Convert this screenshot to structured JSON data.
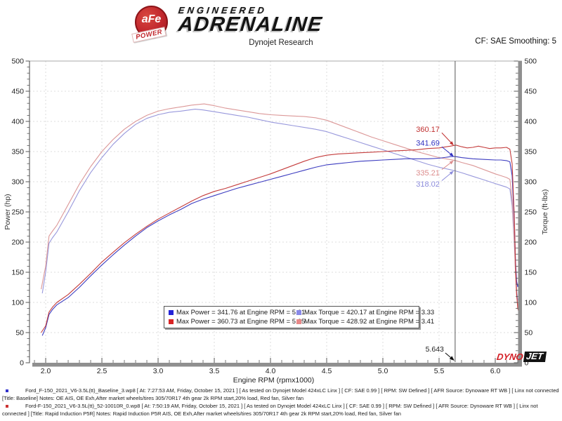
{
  "header": {
    "badge_text": "aFe",
    "badge_sub": "POWER",
    "brand_top": "ENGINEERED",
    "brand_main": "ADRENALINE",
    "subtitle": "Dynojet Research",
    "smoothing_label": "CF: SAE Smoothing: 5"
  },
  "chart_data": {
    "type": "line",
    "xlabel": "Engine RPM (rpmx1000)",
    "ylabel_left": "Power (hp)",
    "ylabel_right": "Torque (ft-lbs)",
    "xlim": [
      1.856,
      6.2
    ],
    "ylim": [
      0,
      500
    ],
    "x_ticks": [
      2.0,
      2.5,
      3.0,
      3.5,
      4.0,
      4.5,
      5.0,
      5.5,
      6.0
    ],
    "y_ticks": [
      0,
      50,
      100,
      150,
      200,
      250,
      300,
      350,
      400,
      450,
      500
    ],
    "grid": true,
    "cursor": {
      "rpm": 5.643,
      "label": "5.643"
    },
    "callouts": [
      {
        "label": "360.17",
        "value": 360.17,
        "color": "#c03030",
        "side": "above",
        "dy": -23
      },
      {
        "label": "341.69",
        "value": 341.69,
        "color": "#3030c0",
        "side": "above",
        "dy": -19
      },
      {
        "label": "335.21",
        "value": 335.21,
        "color": "#dc8c8c",
        "side": "below",
        "dy": 18
      },
      {
        "label": "318.02",
        "value": 318.02,
        "color": "#8c8cdc",
        "side": "below",
        "dy": 19
      }
    ],
    "legend": {
      "items": [
        {
          "swatch": "#2424d8",
          "text": "Max Power = 341.76 at Engine RPM = 5.61"
        },
        {
          "swatch": "#8888e8",
          "text": "Max Torque = 420.17 at Engine RPM = 3.33"
        },
        {
          "swatch": "#d82424",
          "text": "Max Power = 360.73 at Engine RPM = 5.65"
        },
        {
          "swatch": "#e88888",
          "text": "Max Torque = 428.92 at Engine RPM = 3.41"
        }
      ]
    },
    "series": [
      {
        "id": "baseline_torque",
        "color": "#9898dc",
        "points": [
          [
            1.97,
            115
          ],
          [
            2.0,
            150
          ],
          [
            2.03,
            198
          ],
          [
            2.06,
            207
          ],
          [
            2.1,
            217
          ],
          [
            2.2,
            250
          ],
          [
            2.3,
            285
          ],
          [
            2.4,
            315
          ],
          [
            2.5,
            340
          ],
          [
            2.6,
            362
          ],
          [
            2.7,
            380
          ],
          [
            2.8,
            395
          ],
          [
            2.9,
            405
          ],
          [
            3.0,
            411
          ],
          [
            3.1,
            415
          ],
          [
            3.2,
            417
          ],
          [
            3.33,
            420.2
          ],
          [
            3.4,
            419
          ],
          [
            3.5,
            416
          ],
          [
            3.6,
            413
          ],
          [
            3.7,
            410
          ],
          [
            3.8,
            407
          ],
          [
            3.9,
            403
          ],
          [
            4.0,
            399
          ],
          [
            4.1,
            396
          ],
          [
            4.2,
            393
          ],
          [
            4.3,
            390
          ],
          [
            4.4,
            387
          ],
          [
            4.5,
            383
          ],
          [
            4.6,
            377
          ],
          [
            4.7,
            371
          ],
          [
            4.8,
            365
          ],
          [
            4.9,
            359
          ],
          [
            5.0,
            353
          ],
          [
            5.1,
            347
          ],
          [
            5.2,
            341
          ],
          [
            5.3,
            335
          ],
          [
            5.4,
            329
          ],
          [
            5.5,
            324
          ],
          [
            5.6,
            320
          ],
          [
            5.643,
            318
          ],
          [
            5.7,
            315
          ],
          [
            5.8,
            309
          ],
          [
            5.9,
            303
          ],
          [
            6.0,
            297
          ],
          [
            6.05,
            294
          ],
          [
            6.1,
            291
          ],
          [
            6.13,
            288
          ],
          [
            6.15,
            260
          ],
          [
            6.17,
            195
          ],
          [
            6.18,
            150
          ],
          [
            6.19,
            120
          ],
          [
            6.2,
            103
          ]
        ]
      },
      {
        "id": "rapid_induction_torque",
        "color": "#dc9898",
        "points": [
          [
            1.96,
            122
          ],
          [
            2.0,
            160
          ],
          [
            2.03,
            210
          ],
          [
            2.06,
            218
          ],
          [
            2.1,
            228
          ],
          [
            2.2,
            262
          ],
          [
            2.3,
            296
          ],
          [
            2.4,
            325
          ],
          [
            2.5,
            350
          ],
          [
            2.6,
            370
          ],
          [
            2.7,
            387
          ],
          [
            2.8,
            400
          ],
          [
            2.9,
            410
          ],
          [
            3.0,
            417
          ],
          [
            3.1,
            421
          ],
          [
            3.2,
            424
          ],
          [
            3.3,
            427
          ],
          [
            3.41,
            428.9
          ],
          [
            3.5,
            426
          ],
          [
            3.6,
            422
          ],
          [
            3.7,
            419
          ],
          [
            3.8,
            416
          ],
          [
            3.9,
            413
          ],
          [
            4.0,
            411
          ],
          [
            4.1,
            410
          ],
          [
            4.2,
            409
          ],
          [
            4.3,
            408
          ],
          [
            4.4,
            406
          ],
          [
            4.5,
            402
          ],
          [
            4.6,
            395
          ],
          [
            4.7,
            388
          ],
          [
            4.8,
            381
          ],
          [
            4.9,
            374
          ],
          [
            5.0,
            368
          ],
          [
            5.1,
            362
          ],
          [
            5.2,
            356
          ],
          [
            5.3,
            350
          ],
          [
            5.4,
            345
          ],
          [
            5.5,
            340
          ],
          [
            5.643,
            335.2
          ],
          [
            5.7,
            332
          ],
          [
            5.8,
            327
          ],
          [
            5.9,
            320
          ],
          [
            6.0,
            313
          ],
          [
            6.05,
            310
          ],
          [
            6.1,
            307
          ],
          [
            6.13,
            304
          ],
          [
            6.15,
            270
          ],
          [
            6.17,
            200
          ],
          [
            6.18,
            145
          ],
          [
            6.19,
            110
          ],
          [
            6.21,
            86
          ]
        ]
      },
      {
        "id": "baseline_power",
        "color": "#3c3cc0",
        "points": [
          [
            1.97,
            45
          ],
          [
            2.0,
            58
          ],
          [
            2.03,
            80
          ],
          [
            2.06,
            88
          ],
          [
            2.1,
            96
          ],
          [
            2.2,
            108
          ],
          [
            2.3,
            125
          ],
          [
            2.4,
            144
          ],
          [
            2.5,
            162
          ],
          [
            2.6,
            179
          ],
          [
            2.7,
            195
          ],
          [
            2.8,
            210
          ],
          [
            2.9,
            224
          ],
          [
            3.0,
            235
          ],
          [
            3.1,
            245
          ],
          [
            3.2,
            254
          ],
          [
            3.3,
            264
          ],
          [
            3.4,
            271
          ],
          [
            3.5,
            277
          ],
          [
            3.6,
            283
          ],
          [
            3.7,
            289
          ],
          [
            3.8,
            294
          ],
          [
            3.9,
            299
          ],
          [
            4.0,
            304
          ],
          [
            4.1,
            309
          ],
          [
            4.2,
            314
          ],
          [
            4.3,
            319
          ],
          [
            4.4,
            324
          ],
          [
            4.5,
            328
          ],
          [
            4.6,
            330
          ],
          [
            4.7,
            332
          ],
          [
            4.8,
            334
          ],
          [
            4.9,
            335
          ],
          [
            5.0,
            336
          ],
          [
            5.1,
            337
          ],
          [
            5.2,
            338
          ],
          [
            5.3,
            338
          ],
          [
            5.4,
            338
          ],
          [
            5.5,
            339
          ],
          [
            5.61,
            341.8
          ],
          [
            5.643,
            341.7
          ],
          [
            5.7,
            340
          ],
          [
            5.8,
            338
          ],
          [
            5.9,
            337
          ],
          [
            6.0,
            336
          ],
          [
            6.05,
            336
          ],
          [
            6.1,
            335
          ],
          [
            6.13,
            333
          ],
          [
            6.15,
            310
          ],
          [
            6.17,
            230
          ],
          [
            6.18,
            170
          ],
          [
            6.19,
            135
          ],
          [
            6.2,
            126
          ],
          [
            6.21,
            134
          ]
        ]
      },
      {
        "id": "rapid_induction_power",
        "color": "#c43c3c",
        "points": [
          [
            1.96,
            50
          ],
          [
            2.0,
            61
          ],
          [
            2.03,
            84
          ],
          [
            2.06,
            92
          ],
          [
            2.1,
            100
          ],
          [
            2.2,
            113
          ],
          [
            2.3,
            130
          ],
          [
            2.4,
            148
          ],
          [
            2.5,
            167
          ],
          [
            2.6,
            183
          ],
          [
            2.7,
            199
          ],
          [
            2.8,
            213
          ],
          [
            2.9,
            226
          ],
          [
            3.0,
            238
          ],
          [
            3.1,
            248
          ],
          [
            3.2,
            258
          ],
          [
            3.3,
            268
          ],
          [
            3.4,
            277
          ],
          [
            3.5,
            284
          ],
          [
            3.6,
            289
          ],
          [
            3.7,
            295
          ],
          [
            3.8,
            301
          ],
          [
            3.9,
            307
          ],
          [
            4.0,
            313
          ],
          [
            4.1,
            320
          ],
          [
            4.2,
            327
          ],
          [
            4.3,
            334
          ],
          [
            4.4,
            340
          ],
          [
            4.5,
            344
          ],
          [
            4.6,
            346
          ],
          [
            4.7,
            347
          ],
          [
            4.8,
            348
          ],
          [
            4.9,
            349
          ],
          [
            5.0,
            350
          ],
          [
            5.1,
            351
          ],
          [
            5.2,
            352
          ],
          [
            5.3,
            353
          ],
          [
            5.4,
            355
          ],
          [
            5.5,
            356
          ],
          [
            5.6,
            359
          ],
          [
            5.65,
            360.7
          ],
          [
            5.7,
            358
          ],
          [
            5.75,
            356
          ],
          [
            5.8,
            357
          ],
          [
            5.85,
            359
          ],
          [
            5.9,
            357
          ],
          [
            5.95,
            355
          ],
          [
            6.0,
            356
          ],
          [
            6.05,
            356
          ],
          [
            6.1,
            357
          ],
          [
            6.13,
            354
          ],
          [
            6.15,
            330
          ],
          [
            6.17,
            240
          ],
          [
            6.18,
            165
          ],
          [
            6.19,
            115
          ],
          [
            6.2,
            90
          ],
          [
            6.22,
            78
          ]
        ]
      }
    ],
    "watermark": {
      "part1": "DYNO",
      "part2": "JET"
    }
  },
  "footer": {
    "runs": [
      {
        "bullet_color": "#3333cc",
        "line1": "Ford_F-150_2021_V6-3.5L(tt)_Baseline_3.wp8 [ At: 7:27:53 AM, Friday, October 15, 2021 ] [ As tested on Dynojet Model 424xLC Linx ] [ CF: SAE 0.99 ] [ RPM: SW Defined ] [ AFR Source: Dynoware RT WB ] [ Linx not connected",
        "line2": "[Title: Baseline]  Notes: OE AIS, OE Exh,After market wheels/tires 305/70R17 4th gear 2k RPM start,20% load, Red fan, Silver fan"
      },
      {
        "bullet_color": "#cc3333",
        "line1": "Ford-F-150_2021_V6-3.5L(tt)_52-10010R_0.wp8 [ At: 7:50:19 AM, Friday, October 15, 2021 ] [ As tested on Dynojet Model 424xLC Linx ] [ CF: SAE 0.99 ] [ RPM: SW Defined ] [ AFR Source: Dynoware RT WB ] [ Linx not",
        "line2": "connected ] [Title: Rapid Induction P5R]  Notes: Rapid Induction P5R AIS, OE Exh,After market wheels/tires 305/70R17 4th gear 2k RPM start,20% load, Red fan, Silver fan"
      }
    ]
  }
}
